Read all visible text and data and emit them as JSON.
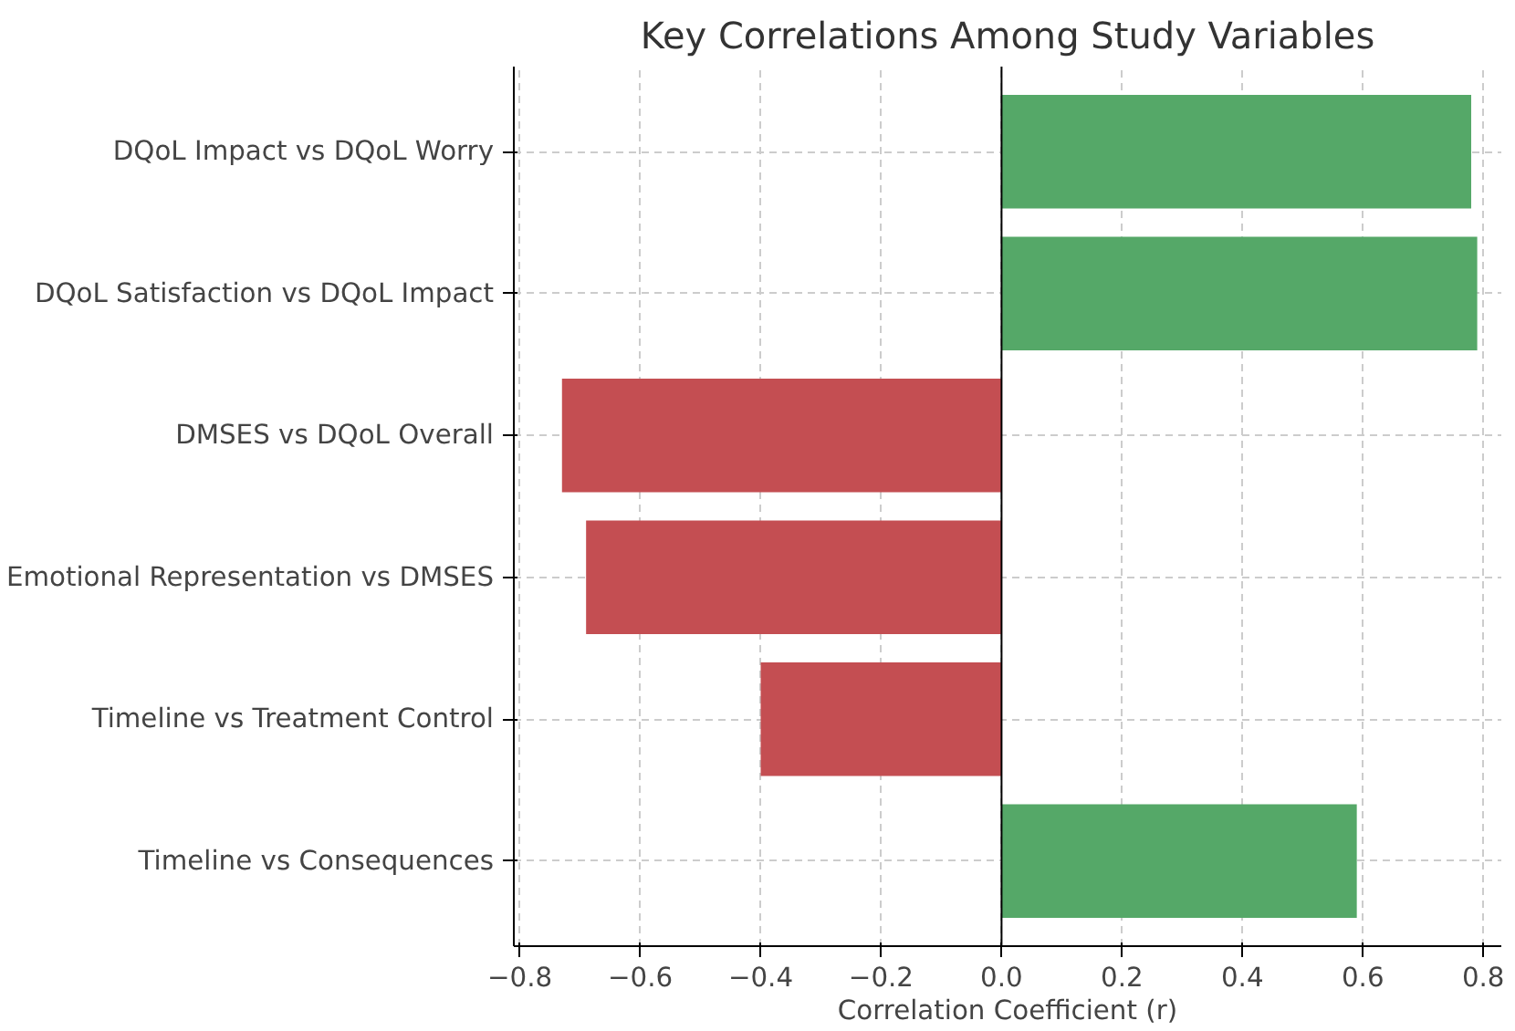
{
  "chart_data": {
    "type": "bar",
    "orientation": "horizontal",
    "title": "Key Correlations Among Study Variables",
    "xlabel": "Correlation Coefficient (r)",
    "categories": [
      "DQoL Impact vs DQoL Worry",
      "DQoL Satisfaction vs DQoL Impact",
      "DMSES vs DQoL Overall",
      "Emotional Representation vs DMSES",
      "Timeline vs Treatment Control",
      "Timeline vs Consequences"
    ],
    "values": [
      0.78,
      0.79,
      -0.73,
      -0.69,
      -0.4,
      0.59
    ],
    "colors": [
      "#55a868",
      "#55a868",
      "#c44e52",
      "#c44e52",
      "#c44e52",
      "#55a868"
    ],
    "xlim": [
      -0.81,
      0.83
    ],
    "xticks": [
      {
        "value": -0.8,
        "label": "−0.8"
      },
      {
        "value": -0.6,
        "label": "−0.6"
      },
      {
        "value": -0.4,
        "label": "−0.4"
      },
      {
        "value": -0.2,
        "label": "−0.2"
      },
      {
        "value": 0.0,
        "label": "0.0"
      },
      {
        "value": 0.2,
        "label": "0.2"
      },
      {
        "value": 0.4,
        "label": "0.4"
      },
      {
        "value": 0.6,
        "label": "0.6"
      },
      {
        "value": 0.8,
        "label": "0.8"
      }
    ],
    "ref_lines": [
      {
        "axis": "x",
        "value": 0,
        "color": "#000000"
      }
    ],
    "grid": true
  }
}
